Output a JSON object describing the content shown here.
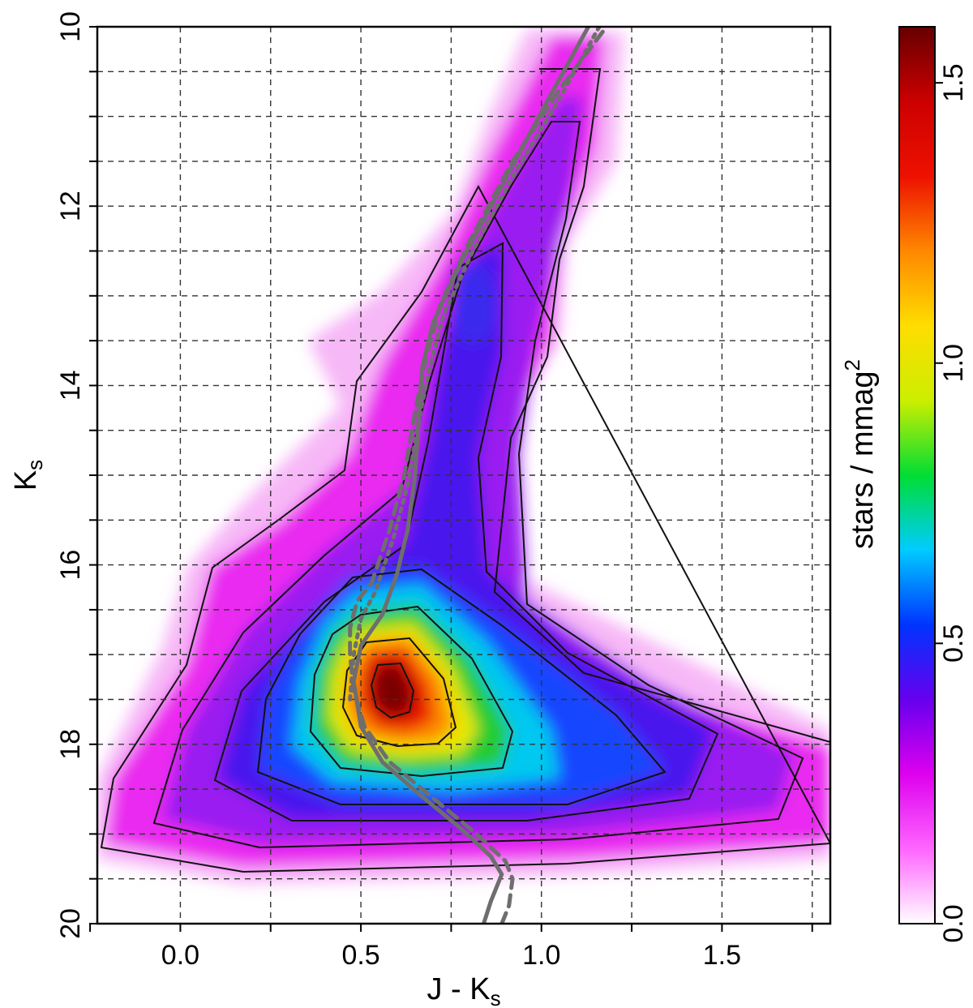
{
  "chart_data": {
    "type": "heatmap",
    "title": "",
    "xlabel": "J - K",
    "xlabel_sub": "s",
    "ylabel": "K",
    "ylabel_sub": "s",
    "xlim": [
      -0.23,
      1.8
    ],
    "ylim": [
      20,
      10
    ],
    "y_inverted": true,
    "xticks": [
      0.0,
      0.5,
      1.0,
      1.5
    ],
    "xtick_labels": [
      "0.0",
      "0.5",
      "1.0",
      "1.5"
    ],
    "yticks": [
      10,
      12,
      14,
      16,
      18,
      20
    ],
    "ytick_labels": [
      "10",
      "12",
      "14",
      "16",
      "18",
      "20"
    ],
    "grid": true,
    "colorbar": {
      "label": "stars / mmag",
      "label_sup": "2",
      "range": [
        0.0,
        1.6
      ],
      "ticks": [
        0.0,
        0.5,
        1.0,
        1.5
      ],
      "tick_labels": [
        "0.0",
        "0.5",
        "1.0",
        "1.5"
      ],
      "colormap": [
        "#ffffff",
        "#ff66ff",
        "#dd00ee",
        "#6600ee",
        "#0033ff",
        "#00ccff",
        "#00dd33",
        "#ccee00",
        "#ffdd00",
        "#ff8800",
        "#ee1100",
        "#cc0000",
        "#660000"
      ]
    },
    "density_features": [
      {
        "name": "red-clump-peak",
        "x": 0.52,
        "y": 17.4,
        "density": 1.6
      },
      {
        "name": "red-giant-bump",
        "x": 0.75,
        "y": 13.4,
        "density": 0.25
      },
      {
        "name": "red-giant-branch-top",
        "x": 1.1,
        "y": 10.2,
        "density": 0.05
      },
      {
        "name": "main-sequence-tail",
        "x": 1.7,
        "y": 18.3,
        "density": 0.05
      }
    ],
    "series": [
      {
        "style": "solid",
        "color": "#6e6e6e",
        "x": [
          0.84,
          0.86,
          0.89,
          0.86,
          0.78,
          0.66,
          0.56,
          0.5,
          0.48,
          0.5,
          0.56,
          0.6,
          0.63,
          0.65,
          0.66,
          0.67,
          0.7,
          0.78,
          0.9,
          1.02,
          1.13
        ],
        "y": [
          20.0,
          19.75,
          19.45,
          19.25,
          18.95,
          18.55,
          18.2,
          17.8,
          17.3,
          16.9,
          16.55,
          16.1,
          15.6,
          15.0,
          14.4,
          13.8,
          13.3,
          12.6,
          11.7,
          10.8,
          10.0
        ]
      },
      {
        "style": "dashed",
        "color": "#6e6e6e",
        "x": [
          0.89,
          0.91,
          0.92,
          0.9,
          0.82,
          0.7,
          0.58,
          0.51,
          0.48,
          0.47,
          0.47,
          0.49,
          0.53,
          0.58,
          0.62,
          0.65,
          0.68,
          0.72,
          0.8,
          0.92,
          1.05,
          1.18
        ],
        "y": [
          20.0,
          19.8,
          19.5,
          19.3,
          19.0,
          18.6,
          18.2,
          17.8,
          17.4,
          17.0,
          16.7,
          16.4,
          16.2,
          15.6,
          15.0,
          14.3,
          13.7,
          13.1,
          12.4,
          11.5,
          10.7,
          10.0
        ]
      },
      {
        "style": "dotted",
        "color": "#6e6e6e",
        "x": [
          0.47,
          0.48,
          0.5,
          0.54,
          0.59,
          0.63,
          0.66,
          0.69,
          0.73,
          0.81,
          0.93,
          1.05,
          1.16
        ],
        "y": [
          17.5,
          17.0,
          16.6,
          16.3,
          15.7,
          15.1,
          14.4,
          13.8,
          13.2,
          12.5,
          11.6,
          10.8,
          10.0
        ]
      }
    ]
  }
}
